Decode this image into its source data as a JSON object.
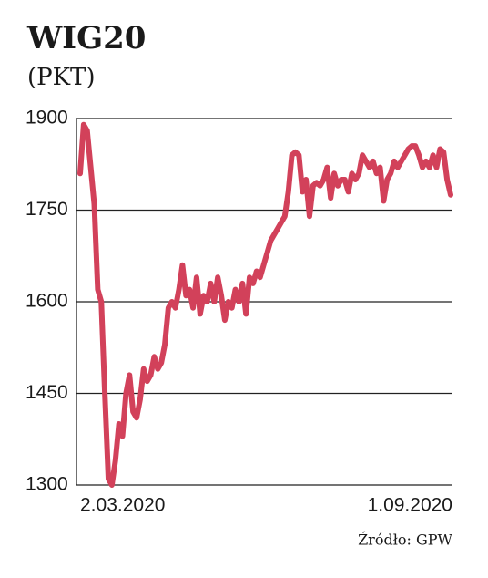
{
  "chart_data": {
    "type": "line",
    "title": "WIG20",
    "subtitle": "(PKT)",
    "source": "Źródło: GPW",
    "categories": [
      "2.03.2020",
      null,
      null,
      null,
      null,
      null,
      null,
      null,
      null,
      null,
      null,
      null,
      null,
      null,
      null,
      null,
      null,
      null,
      null,
      null,
      null,
      null,
      null,
      null,
      null,
      null,
      null,
      null,
      null,
      null,
      null,
      null,
      null,
      null,
      null,
      null,
      null,
      null,
      null,
      null,
      null,
      null,
      null,
      null,
      null,
      null,
      null,
      null,
      null,
      null,
      null,
      null,
      null,
      null,
      null,
      null,
      null,
      null,
      null,
      null,
      null,
      null,
      null,
      null,
      null,
      null,
      null,
      null,
      null,
      null,
      null,
      null,
      null,
      null,
      null,
      null,
      null,
      null,
      null,
      null,
      null,
      null,
      null,
      null,
      null,
      null,
      null,
      null,
      null,
      null,
      null,
      null,
      null,
      null,
      null,
      null,
      null,
      null,
      null,
      null,
      null,
      null,
      null,
      null,
      null,
      "1.09.2020"
    ],
    "series": [
      {
        "name": "WIG20",
        "color": "#d2415a",
        "values": [
          1810,
          1890,
          1880,
          1820,
          1760,
          1620,
          1600,
          1450,
          1310,
          1300,
          1340,
          1400,
          1380,
          1450,
          1480,
          1420,
          1410,
          1440,
          1490,
          1470,
          1480,
          1510,
          1490,
          1500,
          1530,
          1590,
          1600,
          1590,
          1620,
          1660,
          1610,
          1620,
          1590,
          1640,
          1580,
          1610,
          1600,
          1630,
          1600,
          1640,
          1610,
          1570,
          1600,
          1590,
          1620,
          1600,
          1630,
          1580,
          1640,
          1630,
          1650,
          1640,
          1660,
          1680,
          1700,
          1710,
          1720,
          1730,
          1740,
          1780,
          1840,
          1845,
          1840,
          1780,
          1800,
          1740,
          1790,
          1795,
          1790,
          1800,
          1820,
          1770,
          1810,
          1790,
          1800,
          1800,
          1780,
          1810,
          1800,
          1810,
          1840,
          1830,
          1820,
          1830,
          1810,
          1820,
          1765,
          1800,
          1810,
          1830,
          1820,
          1830,
          1840,
          1850,
          1855,
          1855,
          1840,
          1820,
          1830,
          1820,
          1840,
          1820,
          1850,
          1845,
          1800,
          1775
        ]
      }
    ],
    "ylim": [
      1300,
      1900
    ],
    "yticks": [
      1300,
      1450,
      1600,
      1750,
      1900
    ],
    "grid": true
  }
}
